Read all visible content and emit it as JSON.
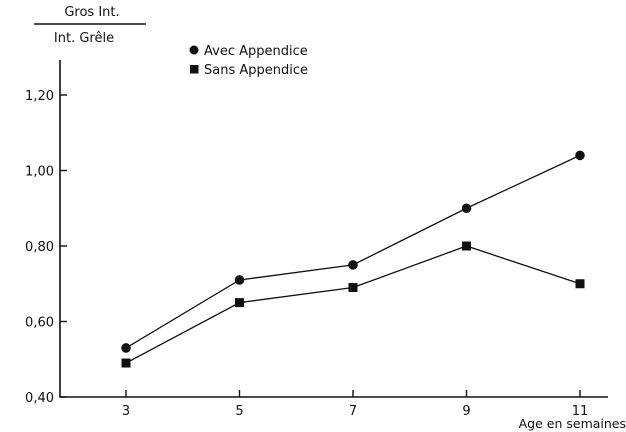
{
  "chart_data": {
    "type": "line",
    "ylabel_top": "Gros Int.",
    "ylabel_bottom": "Int. Grêle",
    "xlabel": "Age en semaines",
    "x": [
      3,
      5,
      7,
      9,
      11
    ],
    "x_tick_labels": [
      "3",
      "5",
      "7",
      "9",
      "11"
    ],
    "ylim": [
      0.4,
      1.3
    ],
    "y_ticks": [
      0.4,
      0.6,
      0.8,
      1.0,
      1.2
    ],
    "y_tick_labels": [
      "0,40",
      "0,60",
      "0,80",
      "1,00",
      "1,20"
    ],
    "grid": false,
    "legend_position": "top-left",
    "series": [
      {
        "name": "Avec Appendice",
        "marker": "circle",
        "values": [
          0.53,
          0.71,
          0.75,
          0.9,
          1.04
        ]
      },
      {
        "name": "Sans Appendice",
        "marker": "square",
        "values": [
          0.49,
          0.65,
          0.69,
          0.8,
          0.7
        ]
      }
    ]
  }
}
